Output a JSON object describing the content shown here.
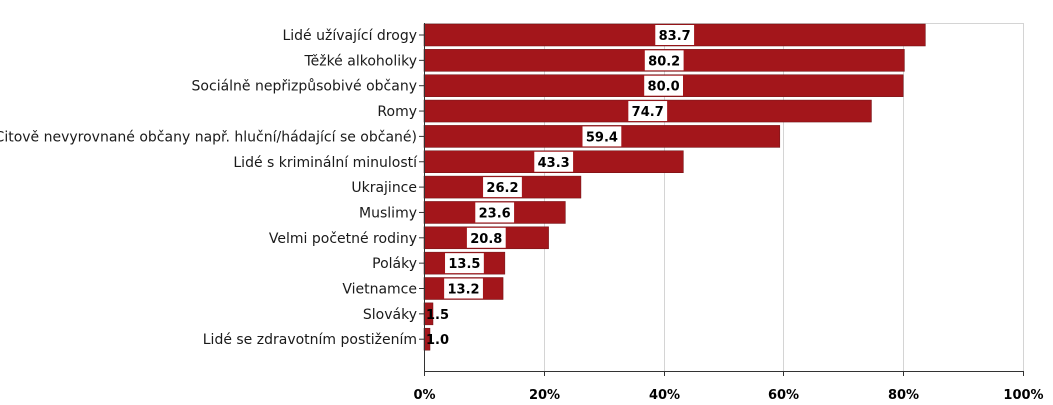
{
  "chart_data": {
    "type": "bar",
    "orientation": "horizontal",
    "categories": [
      "Lidé užívající drogy",
      "Těžké alkoholiky",
      "Sociálně nepřizpůsobivé občany",
      "Romy",
      "Citově nevyrovnané občany např. hluční/hádající se občané)",
      "Lidé s kriminální minulostí",
      "Ukrajince",
      "Muslimy",
      "Velmi početné rodiny",
      "Poláky",
      "Vietnamce",
      "Slováky",
      "Lidé se zdravotním postižením"
    ],
    "values": [
      83.7,
      80.2,
      80.0,
      74.7,
      59.4,
      43.3,
      26.2,
      23.6,
      20.8,
      13.5,
      13.2,
      1.5,
      1.0
    ],
    "value_labels": [
      "83.7",
      "80.2",
      "80.0",
      "74.7",
      "59.4",
      "43.3",
      "26.2",
      "23.6",
      "20.8",
      "13.5",
      "13.2",
      "1.5",
      "1.0"
    ],
    "xlim": [
      0,
      100
    ],
    "x_ticks": [
      0,
      20,
      40,
      60,
      80,
      100
    ],
    "x_tick_labels": [
      "0%",
      "20%",
      "40%",
      "60%",
      "80%",
      "100%"
    ],
    "title": "",
    "xlabel": "",
    "ylabel": "",
    "grid": "vertical",
    "legend": "none",
    "bar_color": "#a3161b",
    "grid_color": "#d4d4d4",
    "axis_color": "#333333"
  }
}
